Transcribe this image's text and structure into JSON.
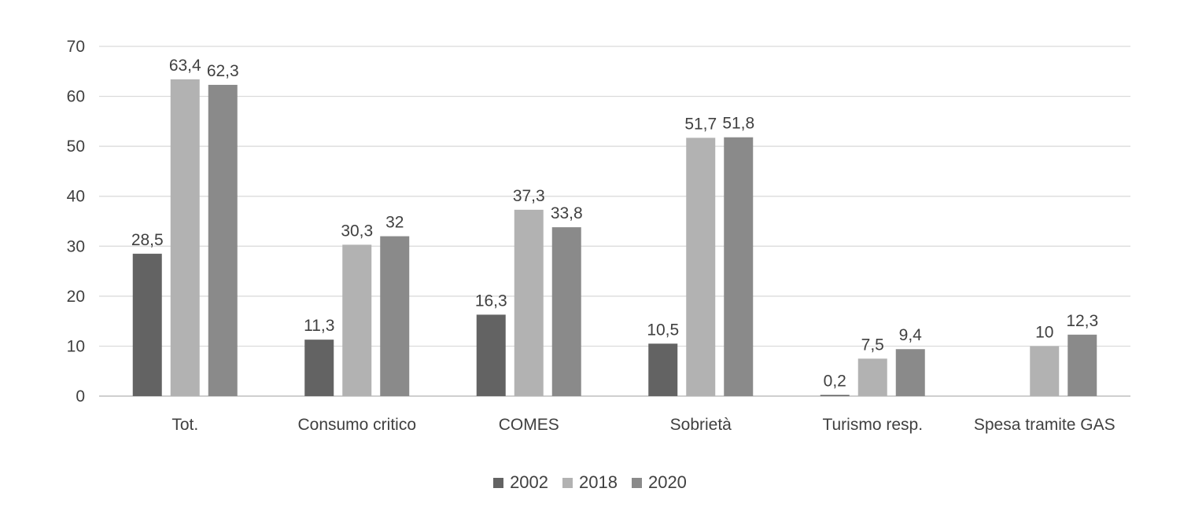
{
  "chart_data": {
    "type": "bar",
    "categories": [
      "Tot.",
      "Consumo critico",
      "COMES",
      "Sobrietà",
      "Turismo resp.",
      "Spesa tramite GAS"
    ],
    "series": [
      {
        "name": "2002",
        "values": [
          28.5,
          11.3,
          16.3,
          10.5,
          0.2,
          null
        ],
        "labels": [
          "28,5",
          "11,3",
          "16,3",
          "10,5",
          "0,2",
          ""
        ],
        "color": "#636363"
      },
      {
        "name": "2018",
        "values": [
          63.4,
          30.3,
          37.3,
          51.7,
          7.5,
          10
        ],
        "labels": [
          "63,4",
          "30,3",
          "37,3",
          "51,7",
          "7,5",
          "10"
        ],
        "color": "#b2b2b2"
      },
      {
        "name": "2020",
        "values": [
          62.3,
          32,
          33.8,
          51.8,
          9.4,
          12.3
        ],
        "labels": [
          "62,3",
          "32",
          "33,8",
          "51,8",
          "9,4",
          "12,3"
        ],
        "color": "#8a8a8a"
      }
    ],
    "yticks": [
      "0",
      "10",
      "20",
      "30",
      "40",
      "50",
      "60",
      "70"
    ],
    "ylim": [
      0,
      70
    ],
    "grid": true,
    "legend_position": "bottom-center",
    "gridline_color": "#d9d9d9",
    "axis_color": "#bfbfbf"
  }
}
